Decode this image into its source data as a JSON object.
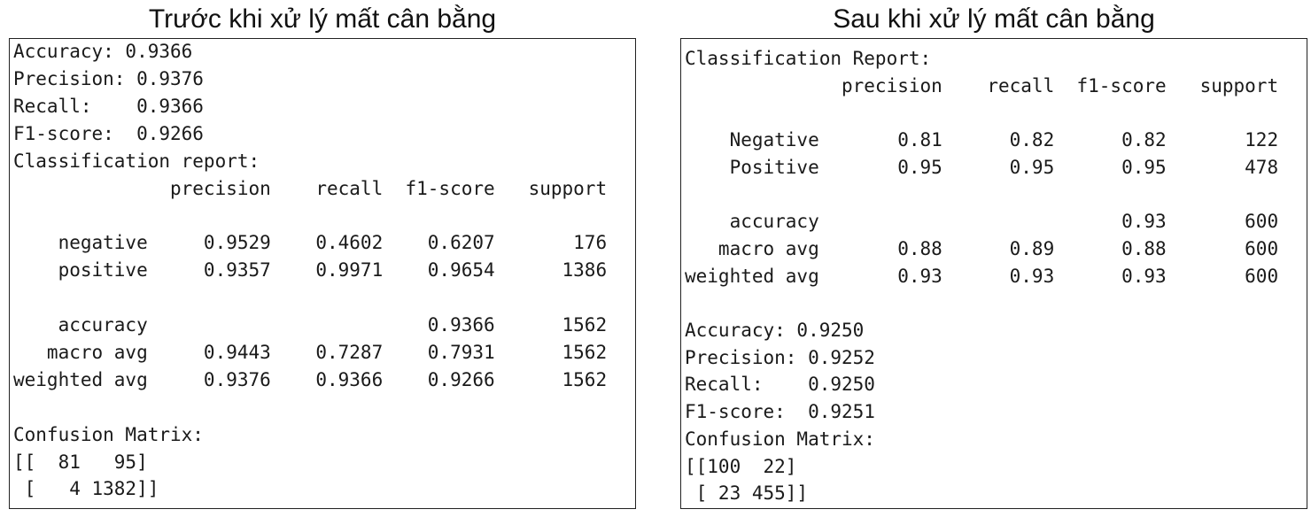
{
  "left": {
    "title": "Trước khi xử lý mất cân bằng",
    "lines": [
      "Accuracy: 0.9366",
      "Precision: 0.9376",
      "Recall:    0.9366",
      "F1-score:  0.9266",
      "Classification report:",
      "              precision    recall  f1-score   support",
      "",
      "    negative     0.9529    0.4602    0.6207       176",
      "    positive     0.9357    0.9971    0.9654      1386",
      "",
      "    accuracy                         0.9366      1562",
      "   macro avg     0.9443    0.7287    0.7931      1562",
      "weighted avg     0.9376    0.9366    0.9266      1562",
      "",
      "Confusion Matrix:",
      "[[  81   95]",
      " [   4 1382]]"
    ]
  },
  "right": {
    "title": "Sau khi xử lý mất cân bằng",
    "lines": [
      "Classification Report:",
      "              precision    recall  f1-score   support",
      "",
      "    Negative       0.81      0.82      0.82       122",
      "    Positive       0.95      0.95      0.95       478",
      "",
      "    accuracy                           0.93       600",
      "   macro avg       0.88      0.89      0.88       600",
      "weighted avg       0.93      0.93      0.93       600",
      "",
      "Accuracy: 0.9250",
      "Precision: 0.9252",
      "Recall:    0.9250",
      "F1-score:  0.9251",
      "Confusion Matrix:",
      "[[100  22]",
      " [ 23 455]]"
    ]
  }
}
